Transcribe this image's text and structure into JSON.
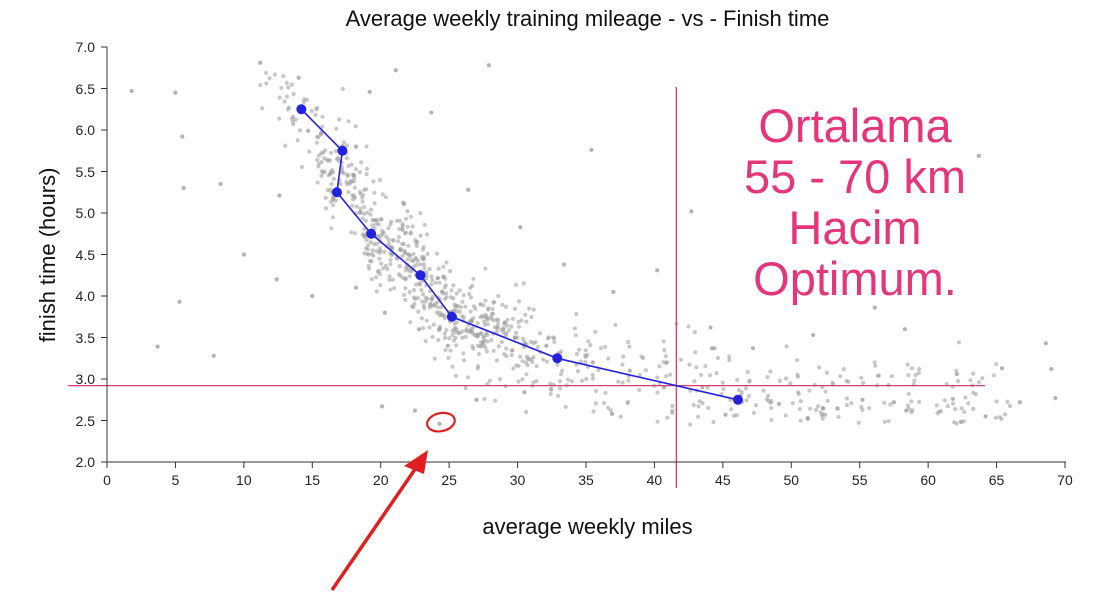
{
  "chart_data": {
    "type": "scatter",
    "title": "Average weekly training mileage - vs - Finish time",
    "xlabel": "average weekly miles",
    "ylabel": "finish time (hours)",
    "xlim": [
      0,
      70
    ],
    "ylim": [
      2.0,
      7.0
    ],
    "x_ticks": [
      "0",
      "5",
      "10",
      "15",
      "20",
      "25",
      "30",
      "35",
      "40",
      "45",
      "50",
      "55",
      "60",
      "65",
      "70"
    ],
    "y_ticks": [
      "2.0",
      "2.5",
      "3.0",
      "3.5",
      "4.0",
      "4.5",
      "5.0",
      "5.5",
      "6.0",
      "6.5",
      "7.0"
    ],
    "grid": false,
    "series": [
      {
        "style": "scatter",
        "color": "#9a9a9a",
        "points_note": "~1000 individual runner points; cloud trending downward from upper-left to lower-right",
        "seed_points": [
          [
            1.8,
            6.47
          ],
          [
            5.0,
            6.45
          ],
          [
            5.5,
            5.92
          ],
          [
            5.6,
            5.3
          ],
          [
            5.3,
            3.93
          ],
          [
            3.7,
            3.39
          ],
          [
            7.8,
            3.28
          ],
          [
            11.2,
            6.81
          ],
          [
            14.0,
            6.63
          ],
          [
            19.2,
            6.46
          ],
          [
            21.1,
            6.72
          ],
          [
            27.9,
            6.78
          ],
          [
            23.7,
            6.21
          ],
          [
            10.0,
            4.5
          ],
          [
            12.4,
            4.2
          ],
          [
            15.0,
            4.0
          ],
          [
            18.2,
            4.1
          ],
          [
            20.3,
            3.8
          ],
          [
            22.8,
            3.6
          ],
          [
            24.9,
            3.4
          ],
          [
            27.3,
            3.9
          ],
          [
            29.8,
            3.5
          ],
          [
            32.1,
            3.4
          ],
          [
            35.5,
            3.2
          ],
          [
            38.2,
            3.1
          ],
          [
            40.7,
            2.9
          ],
          [
            43.5,
            2.9
          ],
          [
            46.3,
            2.8
          ],
          [
            49.1,
            2.7
          ],
          [
            52.3,
            2.65
          ],
          [
            55.2,
            2.75
          ],
          [
            58.4,
            2.62
          ],
          [
            61.8,
            2.76
          ],
          [
            64.2,
            2.55
          ],
          [
            66.7,
            2.72
          ],
          [
            69.0,
            3.12
          ],
          [
            69.3,
            2.77
          ],
          [
            68.6,
            3.43
          ],
          [
            63.7,
            5.69
          ],
          [
            56.1,
            3.86
          ],
          [
            58.3,
            3.6
          ],
          [
            51.6,
            3.53
          ],
          [
            40.2,
            4.31
          ],
          [
            42.7,
            5.02
          ],
          [
            35.4,
            5.76
          ],
          [
            30.2,
            4.83
          ],
          [
            16.3,
            5.47
          ],
          [
            12.6,
            5.21
          ],
          [
            8.3,
            5.35
          ],
          [
            24.3,
            2.46
          ],
          [
            20.1,
            2.67
          ],
          [
            22.5,
            2.62
          ],
          [
            27.0,
            2.75
          ],
          [
            30.5,
            2.84
          ],
          [
            36.9,
            2.58
          ],
          [
            45.2,
            2.57
          ],
          [
            51.2,
            2.53
          ],
          [
            57.5,
            2.72
          ],
          [
            62.1,
            3.06
          ],
          [
            65.4,
            3.13
          ],
          [
            47.2,
            3.37
          ],
          [
            44.1,
            3.62
          ],
          [
            37.0,
            4.05
          ],
          [
            33.4,
            4.38
          ],
          [
            26.4,
            5.28
          ],
          [
            21.7,
            5.11
          ],
          [
            18.2,
            5.8
          ],
          [
            14.7,
            5.99
          ]
        ]
      },
      {
        "style": "line-markers",
        "color": "#2222dd",
        "points": [
          [
            14.2,
            6.25
          ],
          [
            17.2,
            5.75
          ],
          [
            16.8,
            5.25
          ],
          [
            19.3,
            4.75
          ],
          [
            22.9,
            4.25
          ],
          [
            25.2,
            3.75
          ],
          [
            32.9,
            3.25
          ],
          [
            46.1,
            2.75
          ]
        ]
      }
    ],
    "reference_lines": {
      "color": "#d63a7a",
      "vertical_x": 41.6,
      "horizontal_y": 2.92
    },
    "annotation": {
      "color": "#e5367b",
      "lines": [
        "Ortalama",
        "55 - 70 km",
        "Hacim",
        "Optimum."
      ]
    },
    "highlight": {
      "color": "#e02020",
      "circle_center": [
        24.4,
        2.48
      ],
      "arrow": "red arrow from below pointing up to the circled point"
    }
  }
}
